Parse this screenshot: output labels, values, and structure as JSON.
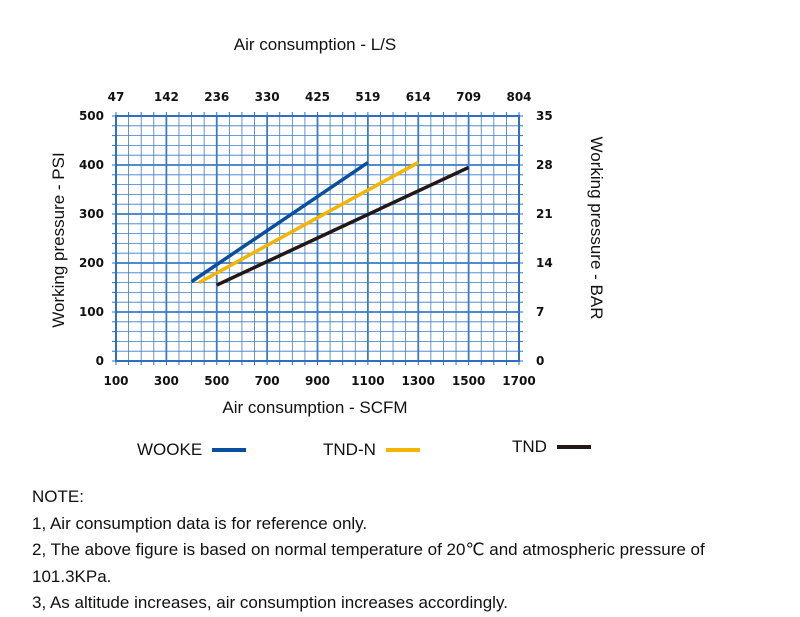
{
  "chart_data": {
    "type": "line",
    "title": "",
    "top_axis_label": "Air consumption - L/S",
    "top_ticks": [
      "47",
      "142",
      "236",
      "330",
      "425",
      "519",
      "614",
      "709",
      "804"
    ],
    "xlabel": "Air consumption  - SCFM",
    "x_ticks": [
      100,
      300,
      500,
      700,
      900,
      1100,
      1300,
      1500,
      1700
    ],
    "xlim": [
      100,
      1700
    ],
    "ylabel": "Working pressure - PSI",
    "y_ticks": [
      0,
      100,
      200,
      300,
      400,
      500
    ],
    "ylim": [
      0,
      500
    ],
    "right_axis_label": "Working pressure - BAR",
    "right_ticks": [
      "0",
      "7",
      "14",
      "21",
      "28",
      "35"
    ],
    "grid": true,
    "legend_position": "bottom",
    "series": [
      {
        "name": "WOOKE",
        "color": "#0a4f9e",
        "x": [
          400,
          1100
        ],
        "y": [
          162,
          405
        ]
      },
      {
        "name": "TND-N",
        "color": "#f5b400",
        "x": [
          430,
          1300
        ],
        "y": [
          160,
          405
        ]
      },
      {
        "name": "TND",
        "color": "#231815",
        "x": [
          500,
          1500
        ],
        "y": [
          155,
          395
        ]
      }
    ]
  },
  "notes": {
    "heading": "NOTE:",
    "items": [
      "1, Air consumption data is for reference only.",
      "2, The above figure is based on normal temperature of 20℃ and atmospheric pressure of 101.3KPa.",
      "3, As altitude increases, air consumption increases accordingly."
    ]
  }
}
